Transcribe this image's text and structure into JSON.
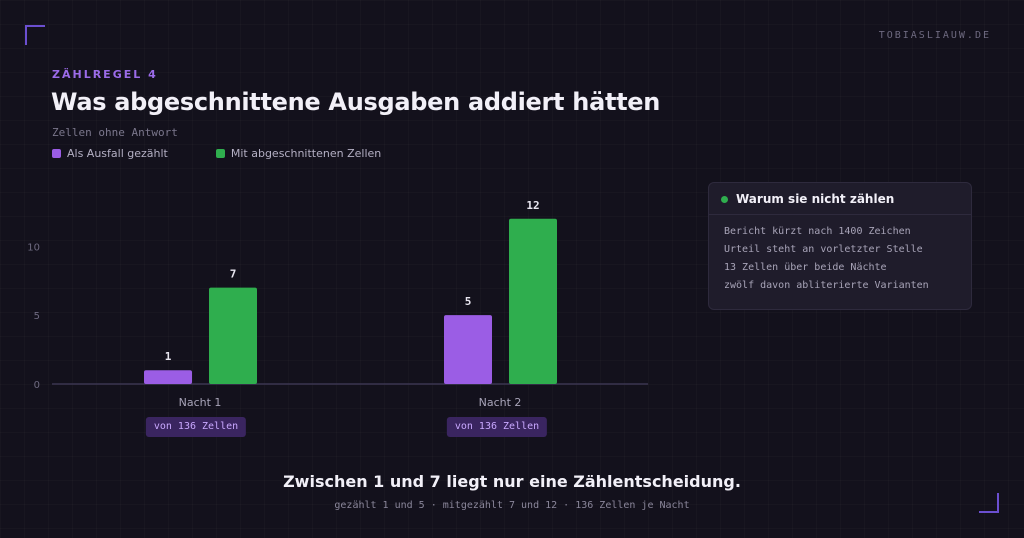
{
  "site": "TOBIASLIAUW.DE",
  "eyebrow": "ZÄHLREGEL 4",
  "title": "Was abgeschnittene Ausgaben addiert hätten",
  "subtitle": "Zellen ohne Antwort",
  "colors": {
    "purple": "#9b5de5",
    "green": "#2fae4e",
    "accent": "#9b6be8"
  },
  "chart_data": {
    "type": "bar",
    "categories": [
      "Nacht 1",
      "Nacht 2"
    ],
    "series": [
      {
        "name": "Als Ausfall gezählt",
        "color": "#9b5de5",
        "values": [
          1,
          5
        ]
      },
      {
        "name": "Mit abgeschnittenen Zellen",
        "color": "#2fae4e",
        "values": [
          7,
          12
        ]
      }
    ],
    "ylim": [
      0,
      13
    ],
    "yticks": [
      0,
      5,
      10
    ],
    "legend": "top-left",
    "grid": false
  },
  "pills": [
    "von 136 Zellen",
    "von 136 Zellen"
  ],
  "info": {
    "title": "Warum sie nicht zählen",
    "lines": [
      "Bericht kürzt nach 1400 Zeichen",
      "Urteil steht an vorletzter Stelle",
      "13 Zellen über beide Nächte",
      "zwölf davon abliterierte Varianten"
    ]
  },
  "footer": {
    "headline": "Zwischen 1 und 7 liegt nur eine Zählentscheidung.",
    "sub": "gezählt 1 und 5 · mitgezählt 7 und 12 · 136 Zellen je Nacht"
  }
}
